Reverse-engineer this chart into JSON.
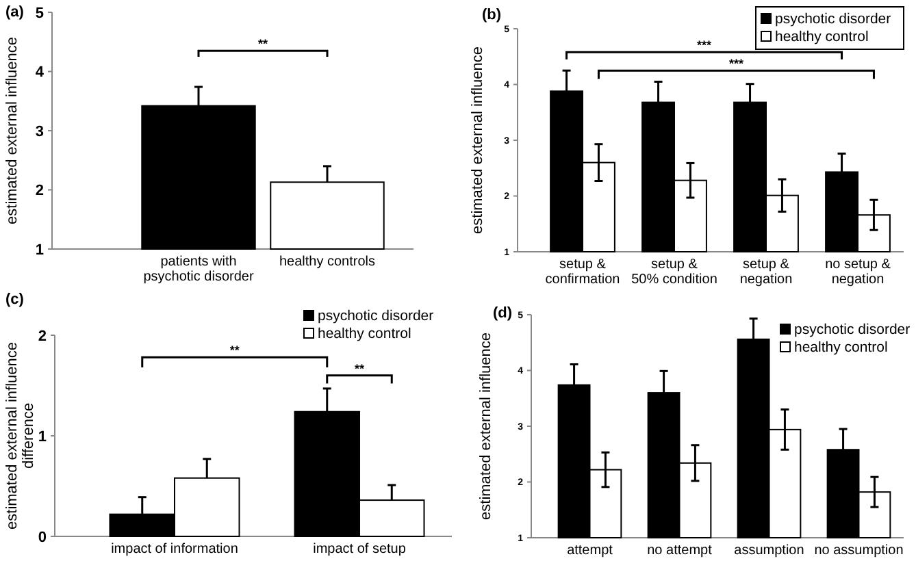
{
  "chart_data": [
    {
      "type": "bar",
      "title": "(a)",
      "ylabel": "estimated external influence",
      "categories": [
        "patients with\npsychotic disorder",
        "healthy controls"
      ],
      "values": [
        3.42,
        2.13
      ],
      "colors": [
        "#000000",
        "#ffffff"
      ],
      "errors": [
        [
          3.42,
          3.74
        ],
        [
          2.13,
          2.4
        ]
      ],
      "ylim": [
        1,
        5
      ],
      "yticks": [
        1,
        2,
        3,
        4,
        5
      ],
      "annotations": [
        "**"
      ]
    },
    {
      "type": "bar",
      "title": "(b)",
      "ylabel": "estimated external influence",
      "categories": [
        "setup &\nconfirmation",
        "setup &\n50% condition",
        "setup &\nnegation",
        "no setup &\nnegation"
      ],
      "series": [
        {
          "name": "psychotic disorder",
          "color": "#000000",
          "values": [
            3.88,
            3.68,
            3.68,
            2.43
          ],
          "errors": [
            0.37,
            0.37,
            0.33,
            0.33
          ]
        },
        {
          "name": "healthy control",
          "color": "#ffffff",
          "values": [
            2.6,
            2.28,
            2.01,
            1.66
          ],
          "errors": [
            0.33,
            0.31,
            0.29,
            0.27
          ]
        }
      ],
      "ylim": [
        1,
        5
      ],
      "yticks": [
        1,
        2,
        3,
        4,
        5
      ],
      "legend": "top right",
      "annotations": [
        "***",
        "***"
      ]
    },
    {
      "type": "bar",
      "title": "(c)",
      "ylabel": "estimated external influence\ndifference",
      "categories": [
        "impact of information",
        "impact of setup"
      ],
      "series": [
        {
          "name": "psychotic disorder",
          "color": "#000000",
          "values": [
            0.22,
            1.24
          ],
          "errors": [
            [
              0.22,
              0.39
            ],
            [
              1.24,
              1.47
            ]
          ]
        },
        {
          "name": "healthy control",
          "color": "#ffffff",
          "values": [
            0.58,
            0.36
          ],
          "errors": [
            [
              0.58,
              0.77
            ],
            [
              0.36,
              0.51
            ]
          ]
        }
      ],
      "ylim": [
        0,
        2
      ],
      "yticks": [
        0,
        1,
        2
      ],
      "legend": "top right",
      "annotations": [
        "**",
        "**"
      ]
    },
    {
      "type": "bar",
      "title": "(d)",
      "ylabel": "estimated external influence",
      "categories": [
        "attempt",
        "no attempt",
        "assumption",
        "no assumption"
      ],
      "series": [
        {
          "name": "psychotic disorder",
          "color": "#000000",
          "values": [
            3.74,
            3.6,
            4.56,
            2.58
          ],
          "errors": [
            0.37,
            0.39,
            0.37,
            0.37
          ]
        },
        {
          "name": "healthy control",
          "color": "#ffffff",
          "values": [
            2.22,
            2.34,
            2.94,
            1.82
          ],
          "errors": [
            0.31,
            0.32,
            0.36,
            0.27
          ]
        }
      ],
      "ylim": [
        1,
        5
      ],
      "yticks": [
        1,
        2,
        3,
        4,
        5
      ],
      "legend": "top right"
    }
  ]
}
